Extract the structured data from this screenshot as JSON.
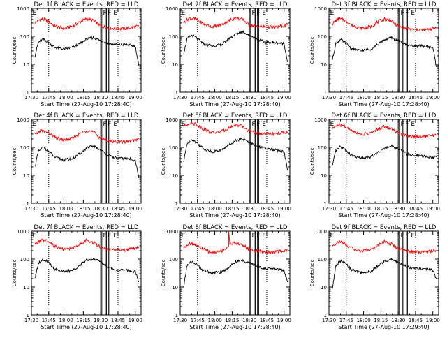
{
  "figure": {
    "xlabel": "Start Time (27-Aug-10 17:28:40)",
    "ylabel": "Counts/sec",
    "x_ticks": [
      "17:30",
      "17:45",
      "18:00",
      "18:15",
      "18:30",
      "18:45",
      "19:00"
    ],
    "y_ticks": [
      "1",
      "10",
      "100",
      "1000"
    ],
    "marker_labels": [
      "E",
      "F",
      "F",
      "E"
    ],
    "colors": {
      "events": "#000000",
      "lld": "#ff0000",
      "frame": "#000000"
    }
  },
  "chart_data": [
    {
      "type": "line",
      "title": "Det 1f BLACK = Events, RED = LLD",
      "xlabel": "Start Time (27-Aug-10 17:28:40)",
      "ylabel": "Counts/sec",
      "y_scale": "log",
      "ylim": [
        1,
        1000
      ],
      "xlim": [
        "17:30",
        "19:05"
      ],
      "series": [
        {
          "name": "RED = LLD",
          "color": "#ff0000",
          "x": [
            "17:33",
            "17:38",
            "17:43",
            "17:50",
            "17:58",
            "18:06",
            "18:12",
            "18:18",
            "18:24",
            "18:30",
            "18:37",
            "18:44",
            "18:52",
            "19:00",
            "19:03"
          ],
          "y": [
            300,
            420,
            380,
            240,
            190,
            230,
            330,
            430,
            360,
            230,
            200,
            190,
            190,
            220,
            230
          ]
        },
        {
          "name": "BLACK = Events",
          "color": "#000000",
          "x": [
            "17:33",
            "17:36",
            "17:40",
            "17:44",
            "17:50",
            "17:58",
            "18:06",
            "18:12",
            "18:18",
            "18:24",
            "18:30",
            "18:37",
            "18:44",
            "18:52",
            "19:00",
            "19:03"
          ],
          "y": [
            20,
            60,
            80,
            65,
            40,
            35,
            40,
            55,
            80,
            90,
            70,
            55,
            50,
            50,
            45,
            9
          ]
        }
      ]
    },
    {
      "type": "line",
      "title": "Det 2f BLACK = Events, RED = LLD",
      "xlabel": "Start Time (27-Aug-10 17:28:40)",
      "ylabel": "Counts/sec",
      "y_scale": "log",
      "ylim": [
        1,
        1000
      ],
      "xlim": [
        "17:30",
        "19:05"
      ],
      "series": [
        {
          "name": "RED = LLD",
          "color": "#ff0000",
          "x": [
            "17:33",
            "17:38",
            "17:43",
            "17:50",
            "17:58",
            "18:06",
            "18:12",
            "18:18",
            "18:24",
            "18:30",
            "18:37",
            "18:44",
            "18:52",
            "19:00",
            "19:03"
          ],
          "y": [
            320,
            450,
            420,
            280,
            220,
            260,
            360,
            460,
            400,
            250,
            230,
            220,
            210,
            240,
            260
          ]
        },
        {
          "name": "BLACK = Events",
          "color": "#000000",
          "x": [
            "17:33",
            "17:36",
            "17:40",
            "17:44",
            "17:50",
            "17:58",
            "18:06",
            "18:12",
            "18:18",
            "18:24",
            "18:30",
            "18:37",
            "18:44",
            "18:52",
            "19:00",
            "19:03"
          ],
          "y": [
            25,
            80,
            110,
            90,
            55,
            45,
            50,
            80,
            120,
            150,
            110,
            80,
            60,
            60,
            55,
            12
          ]
        }
      ]
    },
    {
      "type": "line",
      "title": "Det 3f BLACK = Events, RED = LLD",
      "xlabel": "Start Time (27-Aug-10 17:28:40)",
      "ylabel": "Counts/sec",
      "y_scale": "log",
      "ylim": [
        1,
        1000
      ],
      "xlim": [
        "17:30",
        "19:05"
      ],
      "series": [
        {
          "name": "RED = LLD",
          "color": "#ff0000",
          "x": [
            "17:33",
            "17:38",
            "17:43",
            "17:50",
            "17:58",
            "18:06",
            "18:12",
            "18:18",
            "18:24",
            "18:30",
            "18:37",
            "18:44",
            "18:52",
            "19:00",
            "19:03"
          ],
          "y": [
            280,
            420,
            390,
            250,
            190,
            220,
            320,
            420,
            360,
            230,
            190,
            170,
            170,
            190,
            210
          ]
        },
        {
          "name": "BLACK = Events",
          "color": "#000000",
          "x": [
            "17:33",
            "17:36",
            "17:40",
            "17:44",
            "17:50",
            "17:58",
            "18:06",
            "18:12",
            "18:18",
            "18:24",
            "18:30",
            "18:37",
            "18:44",
            "18:52",
            "19:00",
            "19:03"
          ],
          "y": [
            15,
            55,
            75,
            60,
            35,
            30,
            35,
            50,
            75,
            90,
            70,
            50,
            45,
            45,
            40,
            8
          ]
        }
      ]
    },
    {
      "type": "line",
      "title": "Det 4f BLACK = Events, RED = LLD",
      "xlabel": "Start Time (27-Aug-10 17:28:40)",
      "ylabel": "Counts/sec",
      "y_scale": "log",
      "ylim": [
        1,
        1000
      ],
      "xlim": [
        "17:30",
        "19:05"
      ],
      "series": [
        {
          "name": "RED = LLD",
          "color": "#ff0000",
          "x": [
            "17:33",
            "17:38",
            "17:43",
            "17:50",
            "17:58",
            "18:06",
            "18:12",
            "18:18",
            "18:24",
            "18:30",
            "18:37",
            "18:44",
            "18:52",
            "19:00",
            "19:03"
          ],
          "y": [
            280,
            400,
            360,
            230,
            180,
            210,
            310,
            410,
            350,
            210,
            170,
            160,
            160,
            180,
            200
          ]
        },
        {
          "name": "BLACK = Events",
          "color": "#000000",
          "x": [
            "17:33",
            "17:36",
            "17:40",
            "17:44",
            "17:50",
            "17:58",
            "18:06",
            "18:12",
            "18:18",
            "18:24",
            "18:30",
            "18:37",
            "18:44",
            "18:52",
            "19:00",
            "19:03"
          ],
          "y": [
            20,
            70,
            100,
            80,
            45,
            35,
            40,
            60,
            95,
            110,
            80,
            50,
            40,
            40,
            35,
            8
          ]
        }
      ]
    },
    {
      "type": "line",
      "title": "Det 5f BLACK = Events, RED = LLD",
      "xlabel": "Start Time (27-Aug-10 17:28:40)",
      "ylabel": "Counts/sec",
      "y_scale": "log",
      "ylim": [
        1,
        1000
      ],
      "xlim": [
        "17:30",
        "19:05"
      ],
      "series": [
        {
          "name": "RED = LLD",
          "color": "#ff0000",
          "x": [
            "17:33",
            "17:38",
            "17:43",
            "17:50",
            "17:58",
            "18:06",
            "18:12",
            "18:18",
            "18:24",
            "18:30",
            "18:37",
            "18:44",
            "18:52",
            "19:00",
            "19:03"
          ],
          "y": [
            560,
            750,
            700,
            450,
            330,
            370,
            490,
            640,
            550,
            370,
            320,
            300,
            300,
            340,
            360
          ]
        },
        {
          "name": "BLACK = Events",
          "color": "#000000",
          "x": [
            "17:33",
            "17:36",
            "17:40",
            "17:44",
            "17:50",
            "17:58",
            "18:06",
            "18:12",
            "18:18",
            "18:24",
            "18:30",
            "18:37",
            "18:44",
            "18:52",
            "19:00",
            "19:03"
          ],
          "y": [
            30,
            140,
            190,
            150,
            90,
            70,
            80,
            120,
            180,
            200,
            150,
            110,
            90,
            80,
            70,
            15
          ]
        }
      ]
    },
    {
      "type": "line",
      "title": "Det 6f BLACK = Events, RED = LLD",
      "xlabel": "Start Time (27-Aug-10 17:28:40)",
      "ylabel": "Counts/sec",
      "y_scale": "log",
      "ylim": [
        1,
        1000
      ],
      "xlim": [
        "17:30",
        "19:05"
      ],
      "series": [
        {
          "name": "RED = LLD",
          "color": "#ff0000",
          "x": [
            "17:33",
            "17:38",
            "17:43",
            "17:50",
            "17:58",
            "18:06",
            "18:12",
            "18:18",
            "18:24",
            "18:30",
            "18:37",
            "18:44",
            "18:52",
            "19:00",
            "19:03"
          ],
          "y": [
            480,
            640,
            580,
            390,
            290,
            320,
            430,
            560,
            470,
            320,
            270,
            250,
            250,
            270,
            280
          ]
        },
        {
          "name": "BLACK = Events",
          "color": "#000000",
          "x": [
            "17:33",
            "17:36",
            "17:40",
            "17:44",
            "17:50",
            "17:58",
            "18:06",
            "18:12",
            "18:18",
            "18:24",
            "18:30",
            "18:37",
            "18:44",
            "18:52",
            "19:00",
            "19:03"
          ],
          "y": [
            22,
            75,
            105,
            85,
            50,
            40,
            45,
            65,
            95,
            110,
            90,
            60,
            50,
            48,
            45,
            45
          ]
        }
      ]
    },
    {
      "type": "line",
      "title": "Det 7f BLACK = Events, RED = LLD",
      "xlabel": "Start Time (27-Aug-10 17:28:40)",
      "ylabel": "Counts/sec",
      "y_scale": "log",
      "ylim": [
        1,
        1000
      ],
      "xlim": [
        "17:30",
        "19:05"
      ],
      "series": [
        {
          "name": "RED = LLD",
          "color": "#ff0000",
          "x": [
            "17:33",
            "17:38",
            "17:43",
            "17:50",
            "17:58",
            "18:06",
            "18:12",
            "18:18",
            "18:24",
            "18:30",
            "18:37",
            "18:44",
            "18:52",
            "19:00",
            "19:03"
          ],
          "y": [
            340,
            480,
            440,
            290,
            220,
            250,
            350,
            470,
            400,
            260,
            220,
            210,
            210,
            250,
            270
          ]
        },
        {
          "name": "BLACK = Events",
          "color": "#000000",
          "x": [
            "17:33",
            "17:36",
            "17:40",
            "17:44",
            "17:50",
            "17:58",
            "18:06",
            "18:12",
            "18:18",
            "18:24",
            "18:30",
            "18:37",
            "18:44",
            "18:52",
            "19:00",
            "19:03"
          ],
          "y": [
            22,
            70,
            100,
            80,
            45,
            35,
            40,
            60,
            95,
            105,
            80,
            50,
            40,
            40,
            35,
            15
          ]
        }
      ]
    },
    {
      "type": "line",
      "title": "Det 8f BLACK = Events, RED = LLD",
      "xlabel": "Start Time (27-Aug-10 17:28:40)",
      "ylabel": "Counts/sec",
      "y_scale": "log",
      "ylim": [
        1,
        1000
      ],
      "xlim": [
        "17:30",
        "19:05"
      ],
      "series": [
        {
          "name": "RED = LLD",
          "color": "#ff0000",
          "x": [
            "17:33",
            "17:38",
            "17:43",
            "17:50",
            "17:58",
            "18:06",
            "18:12",
            "18:12",
            "18:13",
            "18:14",
            "18:18",
            "18:24",
            "18:30",
            "18:37",
            "18:44",
            "18:52",
            "19:00",
            "19:03"
          ],
          "y": [
            260,
            370,
            340,
            220,
            170,
            200,
            280,
            1000,
            380,
            370,
            370,
            320,
            220,
            190,
            180,
            180,
            200,
            220
          ]
        },
        {
          "name": "BLACK = Events",
          "color": "#000000",
          "x": [
            "17:33",
            "17:36",
            "17:40",
            "17:44",
            "17:50",
            "17:58",
            "18:06",
            "18:12",
            "18:18",
            "18:24",
            "18:30",
            "18:37",
            "18:44",
            "18:52",
            "19:00",
            "19:03"
          ],
          "y": [
            10,
            60,
            80,
            65,
            40,
            32,
            35,
            50,
            80,
            90,
            70,
            55,
            45,
            45,
            40,
            15
          ]
        }
      ]
    },
    {
      "type": "line",
      "title": "Det 9f BLACK = Events, RED = LLD",
      "xlabel": "Start Time (27-Aug-10 17:29:40)",
      "ylabel": "Counts/sec",
      "y_scale": "log",
      "ylim": [
        1,
        1000
      ],
      "xlim": [
        "17:30",
        "19:05"
      ],
      "series": [
        {
          "name": "RED = LLD",
          "color": "#ff0000",
          "x": [
            "17:33",
            "17:38",
            "17:43",
            "17:50",
            "17:58",
            "18:06",
            "18:12",
            "18:18",
            "18:24",
            "18:30",
            "18:37",
            "18:44",
            "18:52",
            "19:00",
            "19:03"
          ],
          "y": [
            300,
            420,
            380,
            240,
            190,
            220,
            300,
            420,
            350,
            230,
            200,
            180,
            180,
            200,
            210
          ]
        },
        {
          "name": "BLACK = Events",
          "color": "#000000",
          "x": [
            "17:33",
            "17:36",
            "17:40",
            "17:44",
            "17:50",
            "17:58",
            "18:06",
            "18:12",
            "18:18",
            "18:24",
            "18:30",
            "18:37",
            "18:44",
            "18:52",
            "19:00",
            "19:03"
          ],
          "y": [
            9,
            60,
            85,
            70,
            40,
            32,
            35,
            55,
            85,
            100,
            75,
            55,
            45,
            45,
            40,
            20
          ]
        }
      ]
    }
  ]
}
